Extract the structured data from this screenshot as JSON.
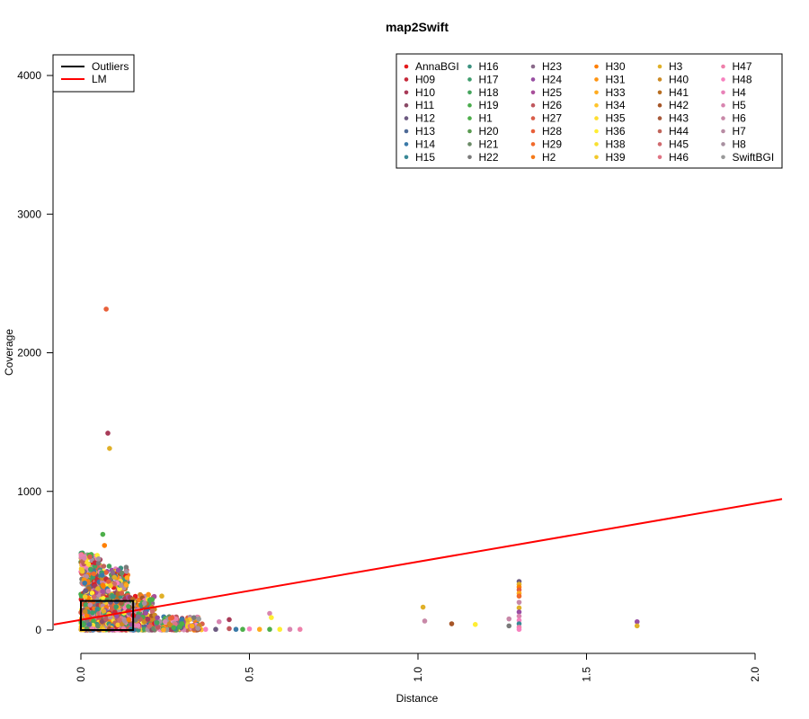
{
  "chart_data": {
    "type": "scatter",
    "title": "map2Swift",
    "xlabel": "Distance",
    "ylabel": "Coverage",
    "xlim": [
      0,
      2.0
    ],
    "ylim": [
      0,
      4000
    ],
    "xticks": [
      "0.0",
      "0.5",
      "1.0",
      "1.5",
      "2.0"
    ],
    "yticks": [
      "0",
      "1000",
      "2000",
      "3000",
      "4000"
    ],
    "grid": false,
    "line_legend": {
      "placement": "top-left",
      "entries": [
        {
          "label": "Outliers",
          "color": "#000000"
        },
        {
          "label": "LM",
          "color": "#ff0000"
        }
      ]
    },
    "regression_line": {
      "name": "LM",
      "color": "#ff0000",
      "points": [
        [
          -0.08,
          40
        ],
        [
          2.08,
          945
        ]
      ]
    },
    "outlier_box": {
      "name": "Outliers",
      "color": "#000000",
      "x": [
        0.0,
        0.155
      ],
      "y": [
        0,
        210
      ]
    },
    "series_legend": {
      "placement": "top-right",
      "columns": 6,
      "entries": [
        {
          "name": "AnnaBGI",
          "color": "#e41a1c"
        },
        {
          "name": "H09",
          "color": "#c62a3a"
        },
        {
          "name": "H10",
          "color": "#a83a58"
        },
        {
          "name": "H11",
          "color": "#8a4a66"
        },
        {
          "name": "H12",
          "color": "#6c5a80"
        },
        {
          "name": "H13",
          "color": "#4e6a96"
        },
        {
          "name": "H14",
          "color": "#3a7aa8"
        },
        {
          "name": "H15",
          "color": "#3a8896"
        },
        {
          "name": "H16",
          "color": "#3c9280"
        },
        {
          "name": "H17",
          "color": "#3e9c6c"
        },
        {
          "name": "H18",
          "color": "#44a45c"
        },
        {
          "name": "H19",
          "color": "#4aac4c"
        },
        {
          "name": "H1",
          "color": "#4daf4a"
        },
        {
          "name": "H20",
          "color": "#5a9a50"
        },
        {
          "name": "H21",
          "color": "#6a8a66"
        },
        {
          "name": "H22",
          "color": "#7a7a7a"
        },
        {
          "name": "H23",
          "color": "#8a6a8a"
        },
        {
          "name": "H24",
          "color": "#984ea3"
        },
        {
          "name": "H25",
          "color": "#a8509a"
        },
        {
          "name": "H26",
          "color": "#c0585e"
        },
        {
          "name": "H27",
          "color": "#d85e4a"
        },
        {
          "name": "H28",
          "color": "#e8603a"
        },
        {
          "name": "H29",
          "color": "#f06a2c"
        },
        {
          "name": "H2",
          "color": "#f57a1a"
        },
        {
          "name": "H30",
          "color": "#ff7f00"
        },
        {
          "name": "H31",
          "color": "#ff9410"
        },
        {
          "name": "H33",
          "color": "#ffab1e"
        },
        {
          "name": "H34",
          "color": "#ffc42a"
        },
        {
          "name": "H35",
          "color": "#ffde30"
        },
        {
          "name": "H36",
          "color": "#ffee33"
        },
        {
          "name": "H38",
          "color": "#f8e030"
        },
        {
          "name": "H39",
          "color": "#f2c82a"
        },
        {
          "name": "H3",
          "color": "#e0b028"
        },
        {
          "name": "H40",
          "color": "#cc8a24"
        },
        {
          "name": "H41",
          "color": "#b86e22"
        },
        {
          "name": "H42",
          "color": "#a65628"
        },
        {
          "name": "H43",
          "color": "#a85a3a"
        },
        {
          "name": "H44",
          "color": "#c0645a"
        },
        {
          "name": "H45",
          "color": "#d06a6e"
        },
        {
          "name": "H46",
          "color": "#e07484"
        },
        {
          "name": "H47",
          "color": "#ee80aa"
        },
        {
          "name": "H48",
          "color": "#f781bf"
        },
        {
          "name": "H4",
          "color": "#e882b8"
        },
        {
          "name": "H5",
          "color": "#d885b0"
        },
        {
          "name": "H6",
          "color": "#c888a8"
        },
        {
          "name": "H7",
          "color": "#b88ca4"
        },
        {
          "name": "H8",
          "color": "#a890a0"
        },
        {
          "name": "SwiftBGI",
          "color": "#999999"
        }
      ]
    },
    "clusters": [
      {
        "x": [
          0.0,
          0.06
        ],
        "y": [
          0,
          560
        ],
        "n": 500
      },
      {
        "x": [
          0.06,
          0.14
        ],
        "y": [
          0,
          480
        ],
        "n": 400
      },
      {
        "x": [
          0.14,
          0.22
        ],
        "y": [
          0,
          280
        ],
        "n": 200
      },
      {
        "x": [
          0.22,
          0.36
        ],
        "y": [
          0,
          110
        ],
        "n": 120
      }
    ],
    "points": [
      {
        "x": 0.075,
        "y": 2315,
        "color": "#e8603a"
      },
      {
        "x": 0.08,
        "y": 1420,
        "color": "#a83a58"
      },
      {
        "x": 0.085,
        "y": 1310,
        "color": "#e0b028"
      },
      {
        "x": 0.065,
        "y": 690,
        "color": "#4daf4a"
      },
      {
        "x": 0.07,
        "y": 610,
        "color": "#ff7f00"
      },
      {
        "x": 0.24,
        "y": 245,
        "color": "#e0b028"
      },
      {
        "x": 0.25,
        "y": 60,
        "color": "#d885b0"
      },
      {
        "x": 0.3,
        "y": 45,
        "color": "#4daf4a"
      },
      {
        "x": 0.33,
        "y": 30,
        "color": "#ffab1e"
      },
      {
        "x": 0.37,
        "y": 5,
        "color": "#f781bf"
      },
      {
        "x": 0.41,
        "y": 60,
        "color": "#d885b0"
      },
      {
        "x": 0.44,
        "y": 75,
        "color": "#a83a58"
      },
      {
        "x": 0.44,
        "y": 10,
        "color": "#c0585e"
      },
      {
        "x": 0.4,
        "y": 5,
        "color": "#6c5a80"
      },
      {
        "x": 0.46,
        "y": 5,
        "color": "#3a7aa8"
      },
      {
        "x": 0.48,
        "y": 5,
        "color": "#4daf4a"
      },
      {
        "x": 0.5,
        "y": 8,
        "color": "#f781bf"
      },
      {
        "x": 0.53,
        "y": 5,
        "color": "#ffab1e"
      },
      {
        "x": 0.56,
        "y": 120,
        "color": "#d885b0"
      },
      {
        "x": 0.565,
        "y": 90,
        "color": "#ffee33"
      },
      {
        "x": 0.56,
        "y": 5,
        "color": "#4daf4a"
      },
      {
        "x": 0.59,
        "y": 5,
        "color": "#ffee33"
      },
      {
        "x": 0.62,
        "y": 5,
        "color": "#d885b0"
      },
      {
        "x": 0.65,
        "y": 5,
        "color": "#ee80aa"
      },
      {
        "x": 1.015,
        "y": 165,
        "color": "#e0b028"
      },
      {
        "x": 1.02,
        "y": 65,
        "color": "#c888a8"
      },
      {
        "x": 1.1,
        "y": 45,
        "color": "#a65628"
      },
      {
        "x": 1.17,
        "y": 40,
        "color": "#ffee33"
      },
      {
        "x": 1.27,
        "y": 80,
        "color": "#c888a8"
      },
      {
        "x": 1.27,
        "y": 30,
        "color": "#7a7a7a"
      },
      {
        "x": 1.3,
        "y": 350,
        "color": "#6c5a80"
      },
      {
        "x": 1.3,
        "y": 330,
        "color": "#e0b028"
      },
      {
        "x": 1.3,
        "y": 310,
        "color": "#ff7f00"
      },
      {
        "x": 1.3,
        "y": 290,
        "color": "#e8603a"
      },
      {
        "x": 1.3,
        "y": 265,
        "color": "#ffab1e"
      },
      {
        "x": 1.3,
        "y": 245,
        "color": "#f06a2c"
      },
      {
        "x": 1.3,
        "y": 200,
        "color": "#c888a8"
      },
      {
        "x": 1.3,
        "y": 160,
        "color": "#e0b028"
      },
      {
        "x": 1.3,
        "y": 130,
        "color": "#984ea3"
      },
      {
        "x": 1.3,
        "y": 100,
        "color": "#d885b0"
      },
      {
        "x": 1.3,
        "y": 70,
        "color": "#f781bf"
      },
      {
        "x": 1.3,
        "y": 45,
        "color": "#3a8896"
      },
      {
        "x": 1.3,
        "y": 20,
        "color": "#ee80aa"
      },
      {
        "x": 1.3,
        "y": 5,
        "color": "#f781bf"
      },
      {
        "x": 1.65,
        "y": 60,
        "color": "#984ea3"
      },
      {
        "x": 1.65,
        "y": 30,
        "color": "#e0b028"
      }
    ]
  }
}
